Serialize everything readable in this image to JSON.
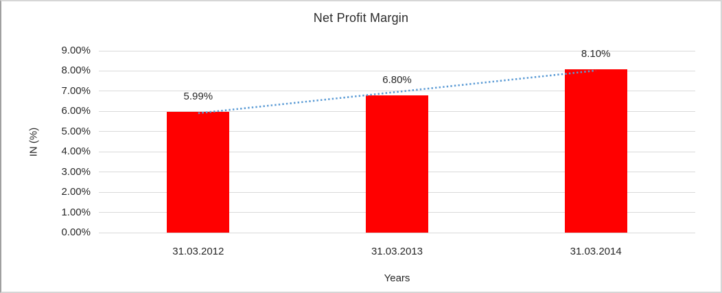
{
  "frame": {
    "background": "#FFFFFF",
    "border_color": "#D6D6D6"
  },
  "chart_data": {
    "type": "bar",
    "title": "Net Profit Margin",
    "xlabel": "Years",
    "ylabel": "IN (%)",
    "categories": [
      "31.03.2012",
      "31.03.2013",
      "31.03.2014"
    ],
    "values": [
      5.99,
      6.8,
      8.1
    ],
    "data_labels": [
      "5.99%",
      "6.80%",
      "8.10%"
    ],
    "bar_color": "#FF0000",
    "ylim": [
      0,
      9
    ],
    "ytick_step": 1,
    "ytick_labels": [
      "0.00%",
      "1.00%",
      "2.00%",
      "3.00%",
      "4.00%",
      "5.00%",
      "6.00%",
      "7.00%",
      "8.00%",
      "9.00%"
    ],
    "grid": true,
    "gridline_color": "#D9D9D9",
    "legend": "none",
    "trendline": {
      "style": "dotted",
      "color": "#5B9BD5",
      "start_value": 5.91,
      "end_value": 8.02
    }
  }
}
